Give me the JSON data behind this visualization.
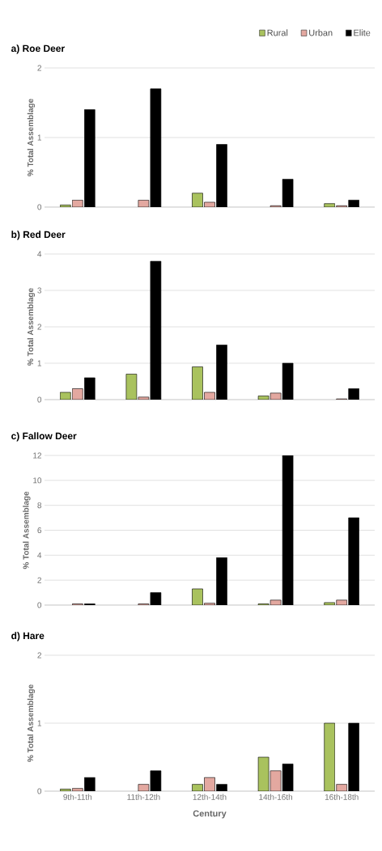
{
  "chart_data": [
    {
      "type": "bar",
      "title": "a) Roe Deer",
      "ylabel": "% Total Assemblage",
      "categories": [
        null,
        null,
        null,
        null,
        null
      ],
      "ylim": [
        0,
        2
      ],
      "yticks": [
        0,
        1,
        2
      ],
      "grid": "y",
      "legend": "top right",
      "series": [
        {
          "name": "Rural",
          "color": "#a9c25e",
          "values": [
            0.03,
            null,
            0.2,
            null,
            0.05
          ]
        },
        {
          "name": "Urban",
          "color": "#e3a8a0",
          "values": [
            0.1,
            0.1,
            0.07,
            0.02,
            0.02
          ]
        },
        {
          "name": "Elite",
          "color": "#000000",
          "values": [
            1.4,
            1.7,
            0.9,
            0.4,
            0.1
          ]
        }
      ]
    },
    {
      "type": "bar",
      "title": "b) Red Deer",
      "ylabel": "% Total Assemblage",
      "categories": [
        null,
        null,
        null,
        null,
        null
      ],
      "ylim": [
        0,
        4
      ],
      "yticks": [
        0,
        1,
        2,
        3,
        4
      ],
      "grid": "y",
      "series": [
        {
          "color": "#a9c25e",
          "values": [
            0.2,
            0.7,
            0.9,
            0.1,
            null
          ]
        },
        {
          "color": "#e3a8a0",
          "values": [
            0.3,
            0.07,
            0.2,
            0.18,
            0.02
          ]
        },
        {
          "color": "#000000",
          "values": [
            0.6,
            3.8,
            1.5,
            1.0,
            0.3
          ]
        }
      ]
    },
    {
      "type": "bar",
      "title": "c) Fallow Deer",
      "ylabel": "% Total Assemblage",
      "categories": [
        null,
        null,
        null,
        null,
        null
      ],
      "ylim": [
        0,
        12
      ],
      "yticks": [
        0,
        2,
        4,
        6,
        8,
        10,
        12
      ],
      "grid": "y",
      "series": [
        {
          "color": "#a9c25e",
          "values": [
            null,
            null,
            1.3,
            0.1,
            0.2
          ]
        },
        {
          "color": "#e3a8a0",
          "values": [
            0.1,
            0.1,
            0.15,
            0.4,
            0.4
          ]
        },
        {
          "color": "#000000",
          "values": [
            0.1,
            1.0,
            3.8,
            12,
            7
          ]
        }
      ]
    },
    {
      "type": "bar",
      "title": "d) Hare",
      "ylabel": "% Total Assemblage",
      "xlabel": "Century",
      "categories": [
        "9th-11th",
        "11th-12th",
        "12th-14th",
        "14th-16th",
        "16th-18th"
      ],
      "ylim": [
        0,
        2
      ],
      "yticks": [
        0,
        1,
        2
      ],
      "grid": "y",
      "series": [
        {
          "color": "#a9c25e",
          "values": [
            0.03,
            null,
            0.1,
            0.5,
            1.0
          ]
        },
        {
          "color": "#e3a8a0",
          "values": [
            0.04,
            0.1,
            0.2,
            0.3,
            0.1
          ]
        },
        {
          "color": "#000000",
          "values": [
            0.2,
            0.3,
            0.1,
            0.4,
            1.0
          ]
        }
      ]
    }
  ]
}
